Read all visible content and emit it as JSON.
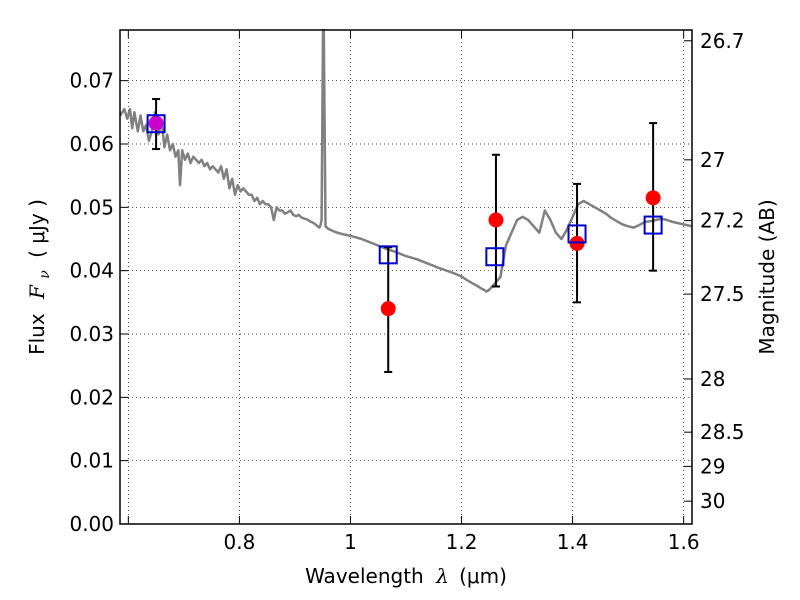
{
  "chart_data": {
    "type": "scatter",
    "xlabel": {
      "prefix": "Wavelength",
      "symbol": "λ",
      "unit": "(μm)"
    },
    "ylabel": {
      "prefix": "Flux",
      "symbol": "F",
      "subscript": "ν",
      "unit": "( μJy )"
    },
    "y2label": "Magnitude (AB)",
    "xlim": [
      0.585,
      1.615
    ],
    "ylim": [
      0.0,
      0.078
    ],
    "grid": true,
    "xticks": [
      {
        "value": 0.6,
        "label": ""
      },
      {
        "value": 0.8,
        "label": "0.8"
      },
      {
        "value": 1.0,
        "label": "1"
      },
      {
        "value": 1.2,
        "label": "1.2"
      },
      {
        "value": 1.4,
        "label": "1.4"
      },
      {
        "value": 1.6,
        "label": "1.6"
      }
    ],
    "yticks": [
      {
        "value": 0.0,
        "label": "0.00"
      },
      {
        "value": 0.01,
        "label": "0.01"
      },
      {
        "value": 0.02,
        "label": "0.02"
      },
      {
        "value": 0.03,
        "label": "0.03"
      },
      {
        "value": 0.04,
        "label": "0.04"
      },
      {
        "value": 0.05,
        "label": "0.05"
      },
      {
        "value": 0.06,
        "label": "0.06"
      },
      {
        "value": 0.07,
        "label": "0.07"
      }
    ],
    "y2ticks": [
      {
        "flux": 0.0763,
        "label": "26.7"
      },
      {
        "flux": 0.0575,
        "label": "27"
      },
      {
        "flux": 0.0479,
        "label": "27.2"
      },
      {
        "flux": 0.0363,
        "label": "27.5"
      },
      {
        "flux": 0.0229,
        "label": "28"
      },
      {
        "flux": 0.0145,
        "label": "28.5"
      },
      {
        "flux": 0.0091,
        "label": "29"
      },
      {
        "flux": 0.0036,
        "label": "30"
      }
    ],
    "colors": {
      "model": "#808080",
      "observed": "#ff0000",
      "model_photometry": "#0000cc",
      "errorbar": "#000000",
      "overlap": "#cc00cc"
    },
    "series": [
      {
        "kind": "model_spectrum",
        "x": [
          0.585,
          0.593,
          0.598,
          0.603,
          0.607,
          0.611,
          0.617,
          0.622,
          0.627,
          0.632,
          0.637,
          0.642,
          0.648,
          0.654,
          0.66,
          0.665,
          0.67,
          0.675,
          0.68,
          0.685,
          0.69,
          0.693,
          0.697,
          0.702,
          0.707,
          0.712,
          0.717,
          0.722,
          0.727,
          0.732,
          0.737,
          0.742,
          0.747,
          0.752,
          0.757,
          0.762,
          0.767,
          0.772,
          0.777,
          0.782,
          0.787,
          0.792,
          0.797,
          0.802,
          0.807,
          0.812,
          0.817,
          0.822,
          0.827,
          0.832,
          0.837,
          0.842,
          0.847,
          0.852,
          0.857,
          0.862,
          0.867,
          0.872,
          0.877,
          0.882,
          0.887,
          0.892,
          0.897,
          0.902,
          0.907,
          0.912,
          0.917,
          0.922,
          0.927,
          0.932,
          0.937,
          0.941,
          0.944,
          0.946,
          0.948,
          0.9505,
          0.952,
          0.955,
          0.96,
          0.97,
          0.98,
          0.99,
          1.0,
          1.02,
          1.04,
          1.06,
          1.08,
          1.1,
          1.12,
          1.14,
          1.16,
          1.18,
          1.2,
          1.21,
          1.22,
          1.23,
          1.235,
          1.24,
          1.245,
          1.25,
          1.26,
          1.27,
          1.28,
          1.29,
          1.3,
          1.31,
          1.32,
          1.33,
          1.34,
          1.35,
          1.36,
          1.37,
          1.38,
          1.39,
          1.4,
          1.41,
          1.42,
          1.43,
          1.44,
          1.45,
          1.46,
          1.47,
          1.48,
          1.49,
          1.5,
          1.51,
          1.52,
          1.53,
          1.54,
          1.55,
          1.56,
          1.57,
          1.58,
          1.59,
          1.6,
          1.615
        ],
        "y": [
          0.0645,
          0.0655,
          0.064,
          0.0655,
          0.0625,
          0.065,
          0.062,
          0.0645,
          0.062,
          0.063,
          0.0605,
          0.062,
          0.065,
          0.0615,
          0.0635,
          0.0595,
          0.0615,
          0.059,
          0.06,
          0.058,
          0.059,
          0.0535,
          0.059,
          0.0575,
          0.0585,
          0.057,
          0.058,
          0.0575,
          0.057,
          0.0575,
          0.0565,
          0.057,
          0.056,
          0.0565,
          0.056,
          0.0555,
          0.0565,
          0.0545,
          0.056,
          0.053,
          0.0545,
          0.052,
          0.0535,
          0.0525,
          0.053,
          0.0525,
          0.052,
          0.052,
          0.051,
          0.0515,
          0.0505,
          0.051,
          0.0505,
          0.0505,
          0.05,
          0.048,
          0.05,
          0.0495,
          0.0495,
          0.049,
          0.0492,
          0.0495,
          0.0488,
          0.0486,
          0.0488,
          0.0484,
          0.0482,
          0.0481,
          0.0478,
          0.0476,
          0.0473,
          0.047,
          0.0468,
          0.0472,
          0.048,
          0.078,
          0.078,
          0.047,
          0.0466,
          0.0462,
          0.0459,
          0.0457,
          0.0455,
          0.045,
          0.0443,
          0.0436,
          0.043,
          0.0423,
          0.0418,
          0.0411,
          0.0404,
          0.0398,
          0.0391,
          0.0385,
          0.038,
          0.0375,
          0.0372,
          0.037,
          0.0367,
          0.037,
          0.038,
          0.039,
          0.044,
          0.046,
          0.048,
          0.0485,
          0.048,
          0.047,
          0.046,
          0.0495,
          0.048,
          0.046,
          0.045,
          0.0465,
          0.0485,
          0.0505,
          0.051,
          0.0505,
          0.05,
          0.0495,
          0.049,
          0.0483,
          0.0478,
          0.0473,
          0.047,
          0.0468,
          0.0472,
          0.0477,
          0.0478,
          0.048,
          0.0482,
          0.048,
          0.0477,
          0.0475,
          0.0473,
          0.047
        ]
      },
      {
        "kind": "observed",
        "x": [
          0.65,
          1.068,
          1.262,
          1.408,
          1.545
        ],
        "y": [
          0.0633,
          0.034,
          0.048,
          0.0443,
          0.0515
        ],
        "yerr_low": [
          0.0592,
          0.024,
          0.0375,
          0.035,
          0.04
        ],
        "yerr_high": [
          0.0671,
          0.0437,
          0.0583,
          0.0537,
          0.0633
        ]
      },
      {
        "kind": "model_photometry",
        "x": [
          0.65,
          1.068,
          1.26,
          1.408,
          1.545
        ],
        "y": [
          0.0632,
          0.0425,
          0.0422,
          0.0458,
          0.0472
        ]
      }
    ]
  }
}
